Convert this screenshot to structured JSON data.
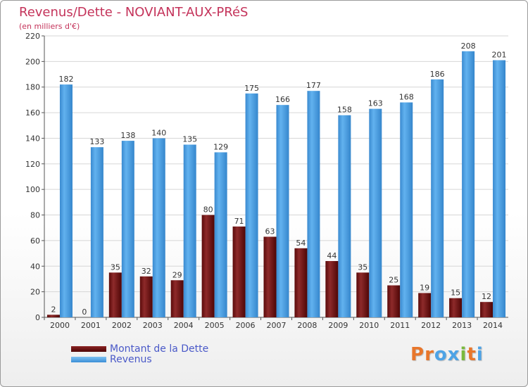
{
  "chart_data": {
    "type": "bar",
    "title": "Revenus/Dette - NOVIANT-AUX-PRéS",
    "subtitle": "(en milliers d'€)",
    "categories": [
      "2000",
      "2001",
      "2002",
      "2003",
      "2004",
      "2005",
      "2006",
      "2007",
      "2008",
      "2009",
      "2010",
      "2011",
      "2012",
      "2013",
      "2014"
    ],
    "series": [
      {
        "name": "Montant de la Dette",
        "color": "#7a1515",
        "values": [
          2,
          0,
          35,
          32,
          29,
          80,
          71,
          63,
          54,
          44,
          35,
          25,
          19,
          15,
          12
        ]
      },
      {
        "name": "Revenus",
        "color": "#4da3e6",
        "values": [
          182,
          133,
          138,
          140,
          135,
          129,
          175,
          166,
          177,
          158,
          163,
          168,
          186,
          208,
          201
        ]
      }
    ],
    "yticks": [
      0,
      20,
      40,
      60,
      80,
      100,
      120,
      140,
      160,
      180,
      200,
      220
    ],
    "ylim": [
      0,
      220
    ],
    "grid": true,
    "legend_position": "bottom-left"
  },
  "logo_text": "Proxiti",
  "logo_colors": [
    "#e8762b",
    "#e8762b",
    "#4da3e6",
    "#4da3e6",
    "#7ab93d",
    "#e8762b",
    "#4da3e6"
  ]
}
